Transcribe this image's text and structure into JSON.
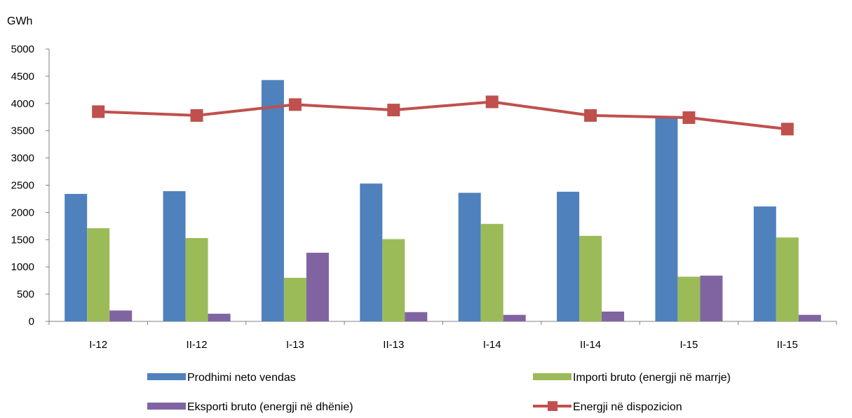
{
  "colors": {
    "prodhimi": "#4F81BD",
    "importi": "#9BBB59",
    "eksporti": "#8064A2",
    "energji": "#C0504D",
    "axis": "#808080",
    "text": "#000000"
  },
  "chart_data": {
    "type": "bar",
    "ylabel": "GWh",
    "ylim": [
      0,
      5000
    ],
    "ytick_step": 500,
    "yticks": [
      "0",
      "500",
      "1000",
      "1500",
      "2000",
      "2500",
      "3000",
      "3500",
      "4000",
      "4500",
      "5000"
    ],
    "grid": false,
    "legend_position": "bottom",
    "categories": [
      "I-12",
      "II-12",
      "I-13",
      "II-13",
      "I-14",
      "II-14",
      "I-15",
      "II-15"
    ],
    "series": [
      {
        "name": "Prodhimi neto vendas",
        "kind": "bar",
        "values": [
          2340,
          2390,
          4430,
          2530,
          2360,
          2380,
          3740,
          2110
        ]
      },
      {
        "name": "Importi bruto (energji në marrje)",
        "kind": "bar",
        "values": [
          1710,
          1530,
          800,
          1510,
          1790,
          1570,
          820,
          1540
        ]
      },
      {
        "name": "Eksporti bruto (energji në dhënie)",
        "kind": "bar",
        "values": [
          200,
          140,
          1260,
          170,
          120,
          180,
          840,
          120
        ]
      },
      {
        "name": "Energji në dispozicion",
        "kind": "line",
        "values": [
          3850,
          3780,
          3980,
          3880,
          4030,
          3780,
          3740,
          3530
        ]
      }
    ]
  }
}
